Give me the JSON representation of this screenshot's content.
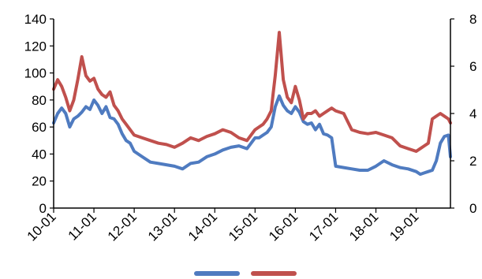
{
  "chart_data": {
    "type": "line",
    "title": "",
    "xlabel": "",
    "ylabel": "",
    "x_categories": [
      "10-01",
      "11-01",
      "12-01",
      "13-01",
      "14-01",
      "15-01",
      "16-01",
      "17-01",
      "18-01",
      "19-01"
    ],
    "x_range": [
      2010.0,
      2019.85
    ],
    "y_left_ticks": [
      "0",
      "20",
      "40",
      "60",
      "80",
      "100",
      "120",
      "140"
    ],
    "y_left_lim": [
      0,
      140
    ],
    "y_right_ticks": [
      "0",
      "2",
      "4",
      "6",
      "8"
    ],
    "y_right_lim": [
      0,
      8
    ],
    "grid": false,
    "legend": "bottom",
    "series": [
      {
        "color": "#4F7BC0",
        "axis": "left",
        "x": [
          2010.0,
          2010.1,
          2010.2,
          2010.3,
          2010.4,
          2010.5,
          2010.6,
          2010.7,
          2010.8,
          2010.9,
          2011.0,
          2011.1,
          2011.2,
          2011.3,
          2011.4,
          2011.5,
          2011.6,
          2011.7,
          2011.8,
          2011.9,
          2012.0,
          2012.2,
          2012.4,
          2012.6,
          2012.8,
          2013.0,
          2013.2,
          2013.4,
          2013.6,
          2013.8,
          2014.0,
          2014.2,
          2014.4,
          2014.6,
          2014.8,
          2015.0,
          2015.1,
          2015.2,
          2015.3,
          2015.4,
          2015.5,
          2015.6,
          2015.7,
          2015.8,
          2015.9,
          2016.0,
          2016.1,
          2016.2,
          2016.3,
          2016.4,
          2016.5,
          2016.6,
          2016.7,
          2016.8,
          2016.9,
          2017.0,
          2017.2,
          2017.4,
          2017.6,
          2017.8,
          2018.0,
          2018.2,
          2018.4,
          2018.6,
          2018.8,
          2019.0,
          2019.1,
          2019.2,
          2019.3,
          2019.4,
          2019.5,
          2019.6,
          2019.7,
          2019.8,
          2019.85
        ],
        "y": [
          63,
          70,
          74,
          70,
          60,
          66,
          68,
          71,
          75,
          73,
          80,
          76,
          70,
          75,
          67,
          66,
          62,
          55,
          50,
          48,
          42,
          38,
          34,
          33,
          32,
          31,
          29,
          33,
          34,
          38,
          40,
          43,
          45,
          46,
          44,
          52,
          52,
          54,
          56,
          60,
          75,
          83,
          76,
          72,
          70,
          75,
          71,
          64,
          62,
          63,
          58,
          62,
          55,
          54,
          52,
          31,
          30,
          29,
          28,
          28,
          31,
          35,
          32,
          30,
          29,
          27,
          25,
          26,
          27,
          28,
          35,
          48,
          53,
          54,
          38
        ]
      },
      {
        "color": "#C0504D",
        "axis": "left",
        "x": [
          2010.0,
          2010.1,
          2010.2,
          2010.3,
          2010.4,
          2010.5,
          2010.6,
          2010.7,
          2010.8,
          2010.9,
          2011.0,
          2011.1,
          2011.2,
          2011.3,
          2011.4,
          2011.5,
          2011.6,
          2011.7,
          2011.8,
          2011.9,
          2012.0,
          2012.2,
          2012.4,
          2012.6,
          2012.8,
          2013.0,
          2013.2,
          2013.4,
          2013.6,
          2013.8,
          2014.0,
          2014.2,
          2014.4,
          2014.6,
          2014.8,
          2015.0,
          2015.1,
          2015.2,
          2015.3,
          2015.4,
          2015.45,
          2015.5,
          2015.6,
          2015.7,
          2015.8,
          2015.9,
          2016.0,
          2016.1,
          2016.2,
          2016.3,
          2016.4,
          2016.5,
          2016.6,
          2016.7,
          2016.8,
          2016.9,
          2017.0,
          2017.2,
          2017.4,
          2017.6,
          2017.8,
          2018.0,
          2018.2,
          2018.4,
          2018.6,
          2018.8,
          2019.0,
          2019.1,
          2019.2,
          2019.3,
          2019.4,
          2019.5,
          2019.6,
          2019.7,
          2019.8,
          2019.85
        ],
        "y": [
          88,
          95,
          90,
          82,
          72,
          80,
          95,
          112,
          98,
          94,
          96,
          88,
          84,
          82,
          86,
          76,
          72,
          66,
          62,
          58,
          54,
          52,
          50,
          48,
          47,
          45,
          48,
          52,
          50,
          53,
          55,
          58,
          56,
          52,
          50,
          58,
          60,
          62,
          66,
          72,
          85,
          98,
          130,
          95,
          82,
          78,
          90,
          80,
          66,
          70,
          70,
          72,
          68,
          70,
          72,
          74,
          72,
          70,
          58,
          56,
          55,
          56,
          54,
          52,
          46,
          44,
          42,
          44,
          46,
          48,
          66,
          68,
          70,
          68,
          66,
          63
        ]
      }
    ]
  }
}
